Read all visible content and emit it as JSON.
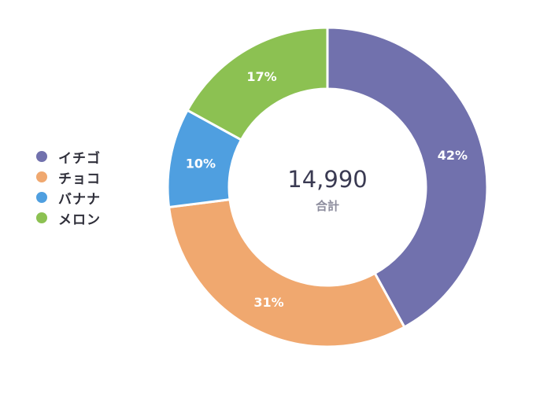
{
  "chart_data": {
    "type": "pie",
    "variant": "donut",
    "categories": [
      "イチゴ",
      "チョコ",
      "バナナ",
      "メロン"
    ],
    "values": [
      42,
      31,
      10,
      17
    ],
    "value_labels": [
      "42%",
      "31%",
      "10%",
      "17%"
    ],
    "colors": [
      "#7171ad",
      "#f0a86f",
      "#4f9fe0",
      "#8cc152"
    ],
    "center_total": "14,990",
    "center_label": "合計",
    "legend_position": "left",
    "start_angle": "top (12 o'clock), clockwise"
  }
}
